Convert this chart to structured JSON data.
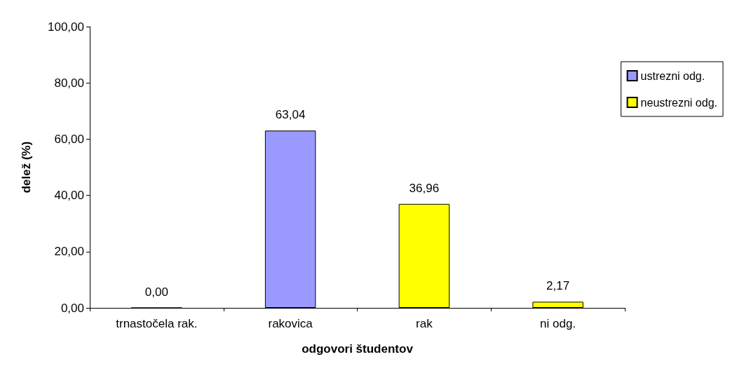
{
  "chart_data": {
    "type": "bar",
    "xlabel": "odgovori študentov",
    "ylabel": "delež (%)",
    "categories": [
      "trnastočela rak.",
      "rakovica",
      "rak",
      "ni odg."
    ],
    "series": [
      {
        "name": "ustrezni odg.",
        "color": "#9999ff",
        "values": [
          0,
          63.04,
          null,
          null
        ],
        "value_labels": [
          "0,00",
          "63,04",
          null,
          null
        ]
      },
      {
        "name": "neustrezni odg.",
        "color": "#ffff00",
        "values": [
          null,
          null,
          36.96,
          2.17
        ],
        "value_labels": [
          null,
          null,
          "36,96",
          "2,17"
        ]
      }
    ],
    "stacked": true,
    "ylim": [
      0,
      100
    ],
    "yticks": [
      {
        "value": 0,
        "label": "0,00"
      },
      {
        "value": 20,
        "label": "20,00"
      },
      {
        "value": 40,
        "label": "40,00"
      },
      {
        "value": 60,
        "label": "60,00"
      },
      {
        "value": 80,
        "label": "80,00"
      },
      {
        "value": 100,
        "label": "100,00"
      }
    ],
    "grid": false,
    "legend": "right"
  }
}
